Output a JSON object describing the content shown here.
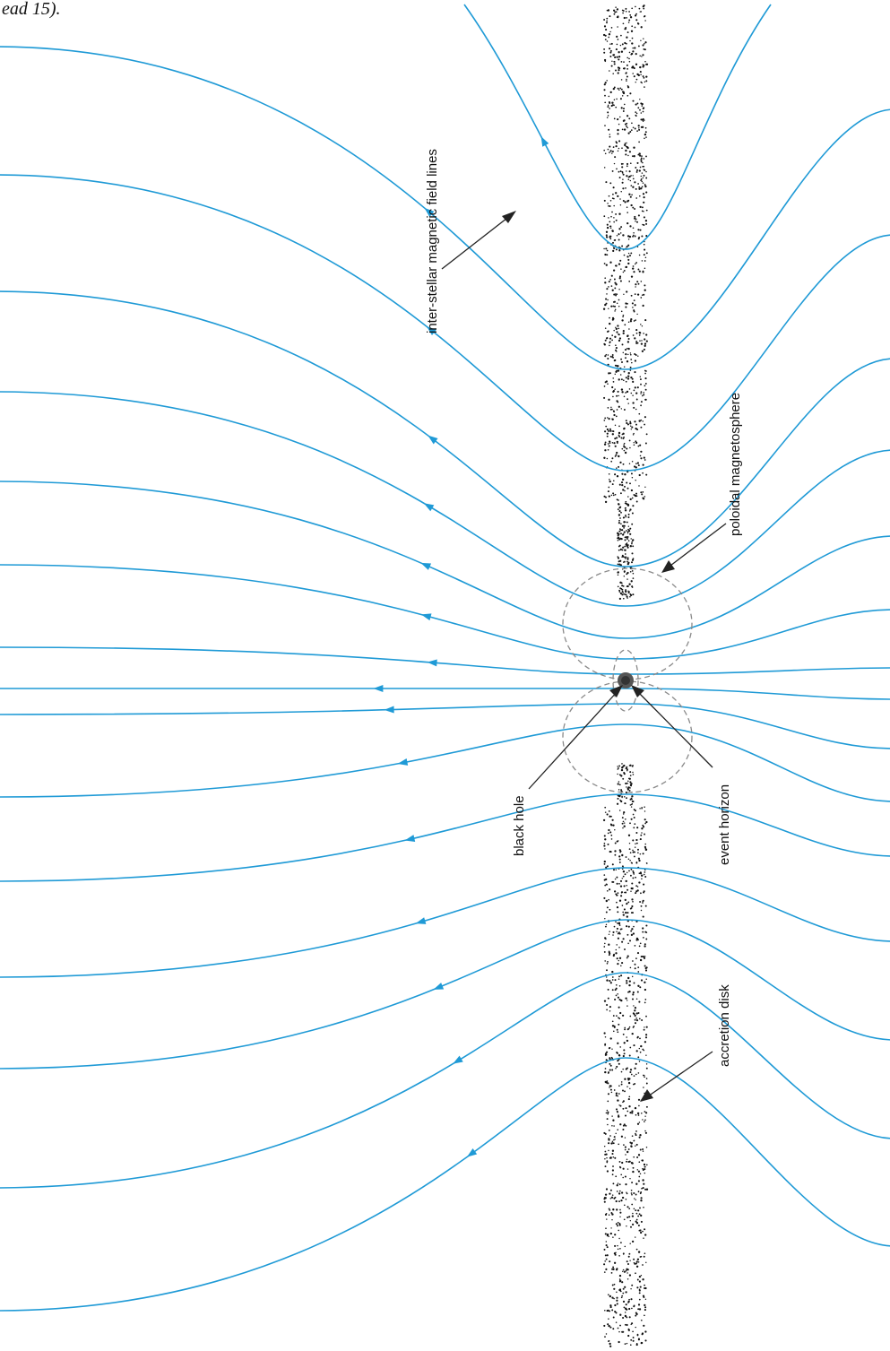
{
  "caption_fragment": "ead 15).",
  "labels": {
    "interstellar": "inter-stellar magnetic field lines",
    "poloidal": "poloidal magnetosphere",
    "black_hole": "black hole",
    "event_horizon": "event horizon",
    "accretion_disk": "accretion disk"
  },
  "colors": {
    "field_line": "#1f9ad6",
    "disk_dots": "#111111",
    "dashed_circles": "#8a8a8a",
    "pointer": "#222222",
    "black_hole": "#555555"
  },
  "icons": {
    "field_direction": "arrowhead-icon",
    "black_hole": "black-hole-icon"
  }
}
